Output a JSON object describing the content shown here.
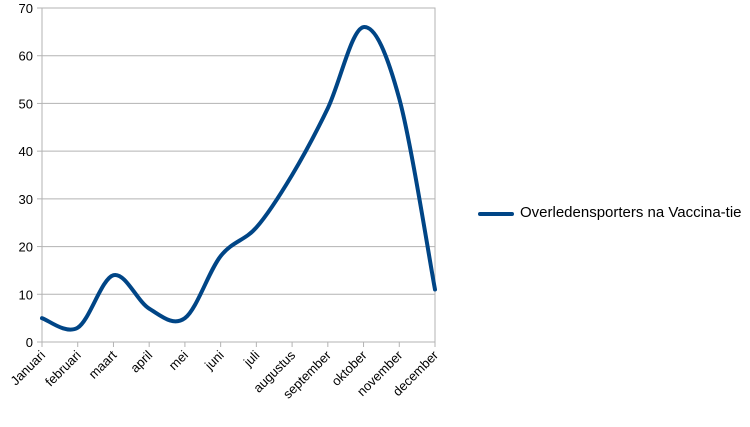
{
  "chart_data": {
    "type": "line",
    "categories": [
      "Januari",
      "februari",
      "maart",
      "april",
      "mei",
      "juni",
      "juli",
      "augustus",
      "september",
      "oktober",
      "november",
      "december"
    ],
    "series": [
      {
        "name": "Overledensporters na Vaccinatie",
        "color": "#004586",
        "values": [
          5,
          3,
          14,
          7,
          5,
          18,
          24,
          35,
          49,
          66,
          51,
          11
        ]
      }
    ],
    "legend_text": "Overledensporters na Vaccina-tie",
    "yticks": [
      "0",
      "10",
      "20",
      "30",
      "40",
      "50",
      "60",
      "70"
    ],
    "ylim": [
      0,
      70
    ],
    "grid": true,
    "legend_position": "right",
    "smooth": true
  }
}
